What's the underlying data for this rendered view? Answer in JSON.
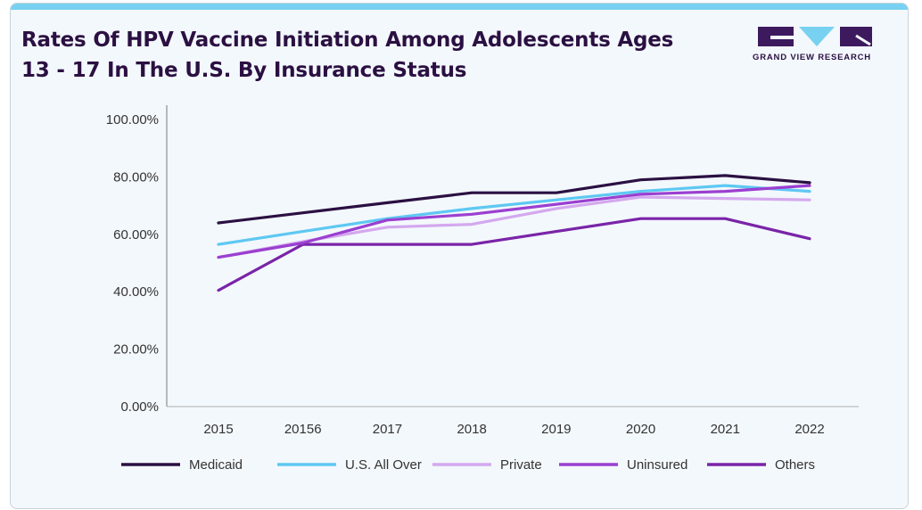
{
  "header": {
    "title": "Rates Of HPV Vaccine Initiation Among Adolescents Ages 13 - 17 In The U.S. By Insurance Status"
  },
  "logo": {
    "text": "GRAND VIEW RESEARCH",
    "icon": "gvr-logo-icon",
    "color": "#3d1a5e",
    "accent": "#78d1f0"
  },
  "colors": {
    "background": "#f3f8fc",
    "accent_bar": "#78d1f0",
    "title": "#2b1042",
    "axis": "#444444"
  },
  "chart_data": {
    "type": "line",
    "categories": [
      "2015",
      "20156",
      "2017",
      "2018",
      "2019",
      "2020",
      "2021",
      "2022"
    ],
    "ylim": [
      0,
      100
    ],
    "yticks": [
      "0.00%",
      "20.00%",
      "40.00%",
      "60.00%",
      "80.00%",
      "100.00%"
    ],
    "ytick_values": [
      0,
      20,
      40,
      60,
      80,
      100
    ],
    "grid": false,
    "legend_position": "bottom",
    "series": [
      {
        "name": "Medicaid",
        "color": "#2b1042",
        "values": [
          64,
          67.5,
          71,
          74.5,
          74.5,
          79,
          80.5,
          78
        ]
      },
      {
        "name": "U.S. All Over",
        "color": "#5ec8f2",
        "values": [
          56.5,
          61,
          65.5,
          69,
          72,
          75,
          77,
          75
        ]
      },
      {
        "name": "Private",
        "color": "#d4a8ee",
        "values": [
          52,
          57.5,
          62.5,
          63.5,
          69,
          73,
          72.5,
          72
        ]
      },
      {
        "name": "Uninsured",
        "color": "#9b3fd0",
        "values": [
          52,
          57,
          65,
          67,
          70.5,
          74,
          75,
          77
        ]
      },
      {
        "name": "Others",
        "color": "#7a24a8",
        "values": [
          40.5,
          56.5,
          56.5,
          56.5,
          61,
          65.5,
          65.5,
          58.5
        ]
      }
    ]
  }
}
